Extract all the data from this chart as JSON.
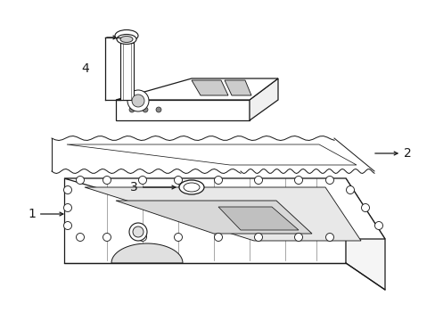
{
  "background_color": "#ffffff",
  "line_color": "#1a1a1a",
  "lw": 0.9,
  "figsize": [
    4.89,
    3.6
  ],
  "dpi": 100
}
